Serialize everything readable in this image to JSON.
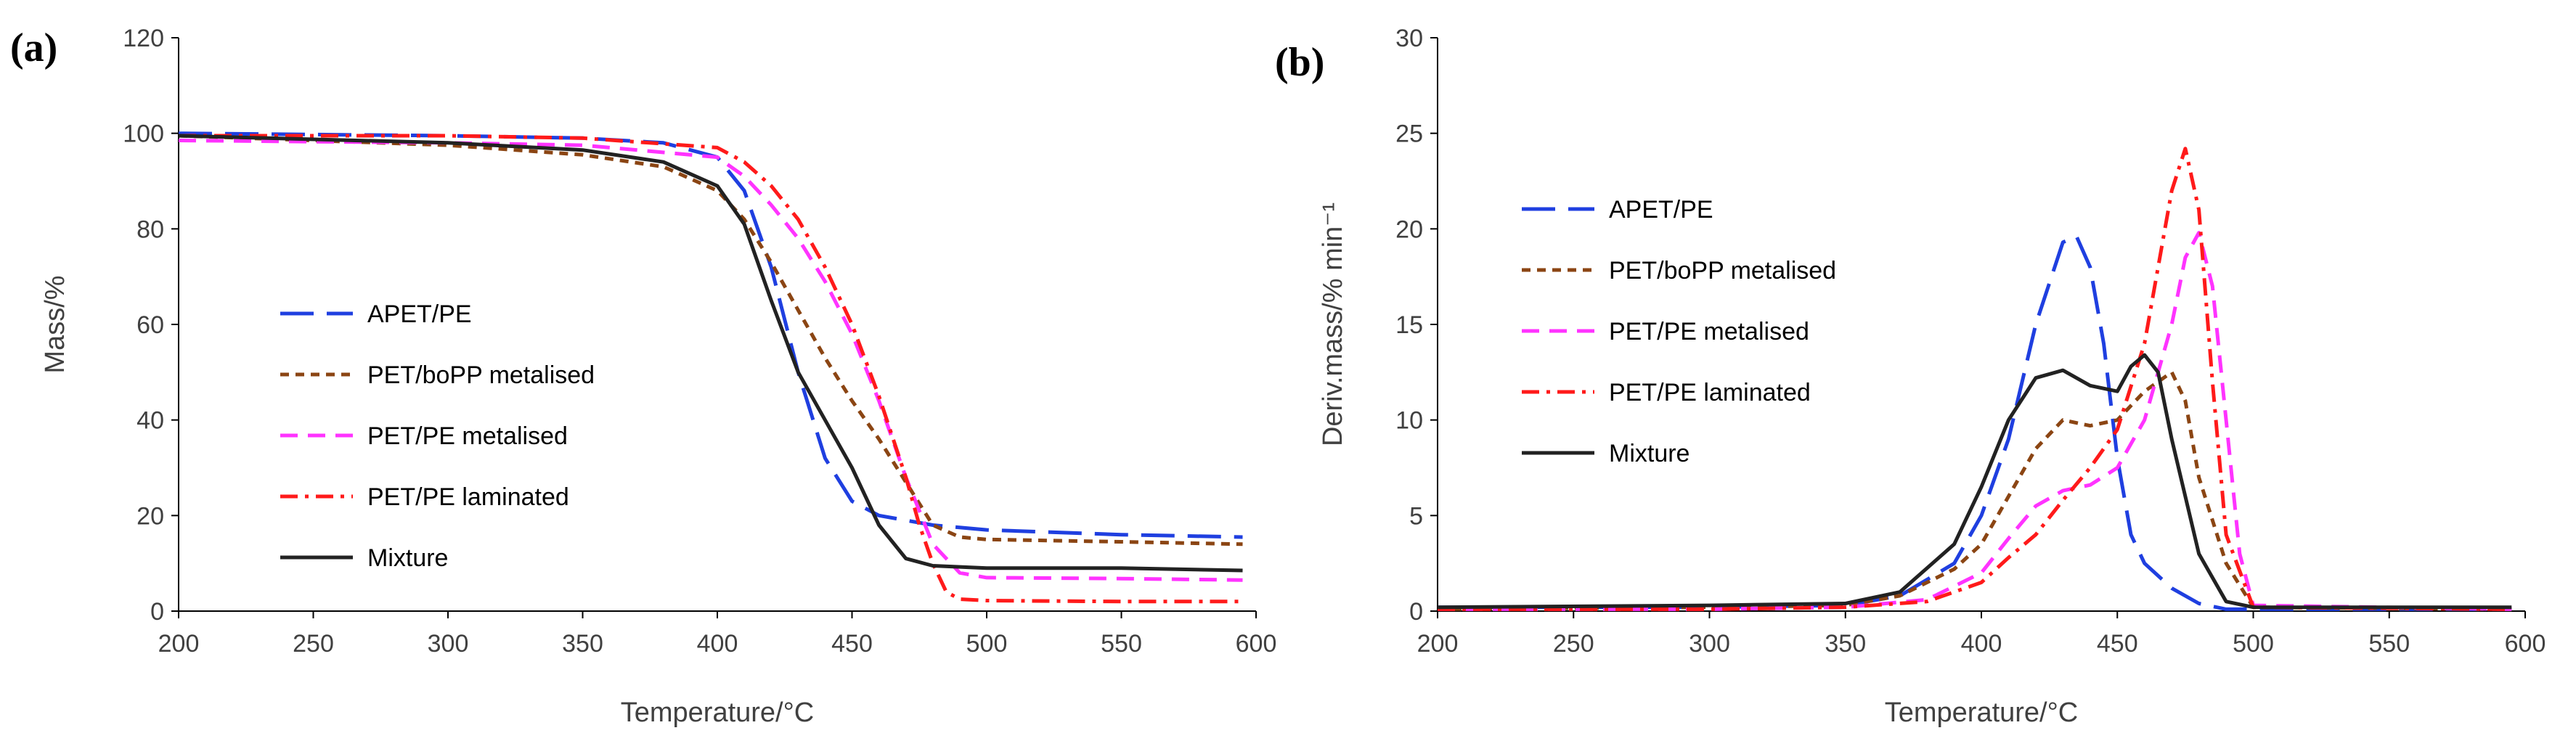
{
  "panel_labels": {
    "a": "(a)",
    "b": "(b)"
  },
  "chart_data": [
    {
      "id": "a",
      "type": "line",
      "title": "",
      "xlabel": "Temperature/°C",
      "ylabel": "Mass/%",
      "xlim": [
        200,
        600
      ],
      "ylim": [
        0,
        120
      ],
      "xticks": [
        200,
        250,
        300,
        350,
        400,
        450,
        500,
        550,
        600
      ],
      "yticks": [
        0,
        20,
        40,
        60,
        80,
        100,
        120
      ],
      "grid": false,
      "legend_position": "center-left",
      "series": [
        {
          "name": "APET/PE",
          "color": "#1f3fe0",
          "dash": "long-dash",
          "x": [
            200,
            300,
            350,
            380,
            400,
            410,
            420,
            430,
            440,
            450,
            460,
            480,
            500,
            550,
            595
          ],
          "y": [
            100,
            99.5,
            99,
            98,
            95,
            88,
            72,
            50,
            32,
            23,
            20,
            18,
            17,
            16,
            15.5
          ]
        },
        {
          "name": "PET/boPP metalised",
          "color": "#8b4513",
          "dash": "short-dash",
          "x": [
            200,
            300,
            350,
            380,
            400,
            410,
            420,
            430,
            440,
            450,
            460,
            470,
            480,
            490,
            500,
            550,
            595
          ],
          "y": [
            99.5,
            97.5,
            95.5,
            93,
            88,
            82,
            73,
            63,
            53,
            44,
            36,
            27,
            18,
            15.5,
            15,
            14.5,
            14
          ]
        },
        {
          "name": "PET/PE metalised",
          "color": "#ff33ff",
          "dash": "dash",
          "x": [
            200,
            300,
            350,
            400,
            410,
            420,
            430,
            440,
            450,
            460,
            470,
            480,
            490,
            500,
            550,
            595
          ],
          "y": [
            98.5,
            98,
            97.5,
            95,
            91,
            85,
            78,
            69,
            58,
            44,
            28,
            14,
            8,
            7,
            6.8,
            6.5
          ]
        },
        {
          "name": "PET/PE laminated",
          "color": "#ff1a1a",
          "dash": "dash-dot",
          "x": [
            200,
            300,
            350,
            400,
            410,
            420,
            430,
            440,
            450,
            460,
            470,
            475,
            480,
            485,
            490,
            500,
            550,
            595
          ],
          "y": [
            99.5,
            99.5,
            99,
            97,
            94,
            89,
            82,
            72,
            60,
            45,
            28,
            18,
            10,
            4,
            2.5,
            2.2,
            2,
            2
          ]
        },
        {
          "name": "Mixture",
          "color": "#222222",
          "dash": "solid",
          "x": [
            200,
            300,
            350,
            380,
            400,
            410,
            420,
            430,
            440,
            450,
            460,
            470,
            480,
            500,
            550,
            595
          ],
          "y": [
            99.5,
            98,
            96.5,
            94,
            89,
            81,
            65,
            50,
            40,
            30,
            18,
            11,
            9.5,
            9,
            9,
            8.5
          ]
        }
      ]
    },
    {
      "id": "b",
      "type": "line",
      "title": "",
      "xlabel": "Temperature/°C",
      "ylabel": "Deriv.mass/% min⁻¹",
      "xlim": [
        200,
        600
      ],
      "ylim": [
        0,
        30
      ],
      "xticks": [
        200,
        250,
        300,
        350,
        400,
        450,
        500,
        550,
        600
      ],
      "yticks": [
        0,
        5,
        10,
        15,
        20,
        25,
        30
      ],
      "grid": false,
      "legend_position": "top-left",
      "series": [
        {
          "name": "APET/PE",
          "color": "#1f3fe0",
          "dash": "long-dash",
          "x": [
            200,
            300,
            350,
            370,
            390,
            400,
            410,
            420,
            430,
            435,
            440,
            445,
            450,
            455,
            460,
            470,
            480,
            490,
            500,
            595
          ],
          "y": [
            0.2,
            0.2,
            0.3,
            0.8,
            2.5,
            5,
            9,
            15,
            19.3,
            19.6,
            18,
            14,
            8,
            4,
            2.5,
            1.2,
            0.4,
            0.1,
            0.1,
            0.1
          ]
        },
        {
          "name": "PET/boPP metalised",
          "color": "#8b4513",
          "dash": "short-dash",
          "x": [
            200,
            300,
            350,
            370,
            390,
            400,
            410,
            420,
            430,
            440,
            450,
            460,
            470,
            475,
            480,
            490,
            500,
            595
          ],
          "y": [
            0.1,
            0.2,
            0.3,
            0.8,
            2.2,
            3.5,
            6,
            8.5,
            10,
            9.7,
            10,
            11.5,
            12.5,
            11,
            7,
            2.5,
            0.2,
            0.1
          ]
        },
        {
          "name": "PET/PE metalised",
          "color": "#ff33ff",
          "dash": "dash",
          "x": [
            200,
            300,
            350,
            380,
            400,
            410,
            420,
            430,
            440,
            450,
            460,
            470,
            475,
            480,
            485,
            490,
            495,
            500,
            595
          ],
          "y": [
            0.1,
            0.1,
            0.2,
            0.6,
            2,
            3.8,
            5.5,
            6.3,
            6.6,
            7.5,
            10,
            15,
            18.5,
            19.8,
            17,
            10,
            3,
            0.3,
            0.1
          ]
        },
        {
          "name": "PET/PE laminated",
          "color": "#ff1a1a",
          "dash": "dash-dot",
          "x": [
            200,
            300,
            350,
            380,
            400,
            410,
            420,
            430,
            440,
            450,
            460,
            470,
            475,
            480,
            485,
            490,
            500,
            595
          ],
          "y": [
            0.1,
            0.1,
            0.2,
            0.5,
            1.5,
            2.8,
            4,
            5.8,
            7.5,
            9.5,
            14,
            22,
            24.2,
            21,
            12,
            4,
            0.2,
            0.1
          ]
        },
        {
          "name": "Mixture",
          "color": "#222222",
          "dash": "solid",
          "x": [
            200,
            300,
            350,
            370,
            390,
            400,
            410,
            420,
            430,
            440,
            450,
            455,
            460,
            465,
            470,
            480,
            490,
            500,
            595
          ],
          "y": [
            0.2,
            0.3,
            0.4,
            1,
            3.5,
            6.5,
            10,
            12.2,
            12.6,
            11.8,
            11.5,
            12.8,
            13.4,
            12.5,
            9,
            3,
            0.5,
            0.2,
            0.2
          ]
        }
      ]
    }
  ]
}
